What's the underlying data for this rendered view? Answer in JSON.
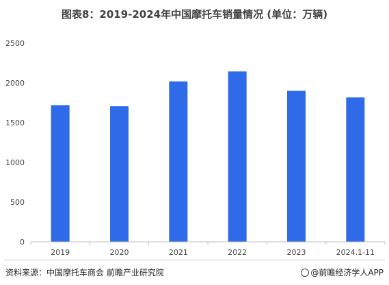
{
  "title": "图表8：2019-2024年中国摩托车销量情况 (单位：万辆)",
  "source": "资料来源：中国摩托车商会 前瞻产业研究院",
  "brand": "@前瞻经济学人APP",
  "colors": {
    "bar": "#2f6ae9",
    "axis": "#bfbfbf",
    "text": "#444444"
  },
  "chart_data": {
    "type": "bar",
    "categories": [
      "2019",
      "2020",
      "2021",
      "2022",
      "2023",
      "2024.1-11"
    ],
    "values": [
      1720,
      1706,
      2019,
      2144,
      1900,
      1817
    ],
    "ylim": [
      0,
      2500
    ],
    "yticks": [
      0,
      500,
      1000,
      1500,
      2000,
      2500
    ],
    "grid": false,
    "legend": "none"
  }
}
